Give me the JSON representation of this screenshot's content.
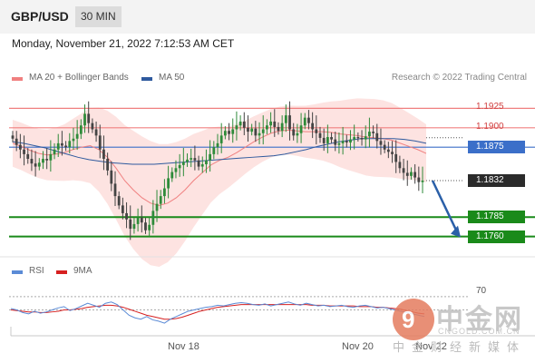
{
  "header": {
    "pair": "GBP/USD",
    "timeframe": "30 MIN"
  },
  "datetime": "Monday, November 21, 2022 7:12:53 AM CET",
  "credit": "Research © 2022 Trading Central",
  "legend": {
    "bb_label": "MA 20 + Bollinger Bands",
    "bb_color": "#f08080",
    "ma50_label": "MA 50",
    "ma50_color": "#2f5a9e"
  },
  "rsi_legend": {
    "rsi_label": "RSI",
    "rsi_color": "#5b8bd6",
    "ma_label": "9MA",
    "ma_color": "#d62020"
  },
  "colors": {
    "up": "#2e8b3a",
    "down": "#444444",
    "support": "#1a8a1a",
    "resistance": "#f08080",
    "pivot": "#3b6fc9",
    "current": "#2b2b2b",
    "arrow": "#2a5fa8"
  },
  "watermark": {
    "cn": "中金网",
    "url": "CNGOLD.COM.CN",
    "sub": "中金财经新媒体"
  },
  "chart_data": {
    "type": "candlestick",
    "x_labels": [
      "Nov 18",
      "Nov 20",
      "Nov 22"
    ],
    "price_range": [
      1.1735,
      1.195
    ],
    "levels": [
      {
        "name": "resistance",
        "label": "1.1925",
        "value": 1.1925
      },
      {
        "name": "resistance",
        "label": "1.1900",
        "value": 1.19
      },
      {
        "name": "pivot",
        "label": "1.1875",
        "value": 1.1875
      },
      {
        "name": "current",
        "label": "1.1832",
        "value": 1.1832
      },
      {
        "name": "support",
        "label": "1.1785",
        "value": 1.1785
      },
      {
        "name": "support",
        "label": "1.1760",
        "value": 1.176
      }
    ],
    "close": [
      1.1886,
      1.1878,
      1.1872,
      1.1866,
      1.186,
      1.1854,
      1.185,
      1.1855,
      1.186,
      1.1858,
      1.1866,
      1.1872,
      1.188,
      1.1877,
      1.1875,
      1.1883,
      1.1886,
      1.1892,
      1.1903,
      1.1918,
      1.1906,
      1.1898,
      1.189,
      1.1872,
      1.186,
      1.1845,
      1.1828,
      1.1812,
      1.18,
      1.179,
      1.1782,
      1.177,
      1.1776,
      1.1784,
      1.1778,
      1.1768,
      1.1775,
      1.1793,
      1.1802,
      1.1812,
      1.1822,
      1.1835,
      1.1843,
      1.1848,
      1.1852,
      1.1856,
      1.1859,
      1.1861,
      1.1858,
      1.185,
      1.1853,
      1.1858,
      1.1866,
      1.1875,
      1.188,
      1.189,
      1.1896,
      1.1892,
      1.1898,
      1.1903,
      1.1908,
      1.19,
      1.1895,
      1.1899,
      1.189,
      1.1893,
      1.1898,
      1.1903,
      1.1908,
      1.1901,
      1.1896,
      1.1906,
      1.1916,
      1.1898,
      1.189,
      1.1893,
      1.1903,
      1.1913,
      1.1906,
      1.1898,
      1.1893,
      1.1887,
      1.188,
      1.1888,
      1.1885,
      1.1878,
      1.188,
      1.1883,
      1.1881,
      1.1885,
      1.1888,
      1.1887,
      1.1885,
      1.1889,
      1.1895,
      1.1893,
      1.1883,
      1.1878,
      1.1872,
      1.1869,
      1.1866,
      1.1856,
      1.1848,
      1.1842,
      1.1838,
      1.1843,
      1.1836,
      1.183,
      1.1832
    ],
    "ma20": [
      1.188,
      1.1876,
      1.1871,
      1.1867,
      1.1865,
      1.1866,
      1.1868,
      1.1872,
      1.1875,
      1.1877,
      1.1872,
      1.1862,
      1.1848,
      1.1832,
      1.182,
      1.181,
      1.1803,
      1.18,
      1.1803,
      1.181,
      1.182,
      1.1832,
      1.1842,
      1.1852,
      1.1858,
      1.1862,
      1.1868,
      1.1875,
      1.1882,
      1.1888,
      1.1893,
      1.1896,
      1.1897,
      1.1896,
      1.1895,
      1.1895,
      1.1895,
      1.1894,
      1.1892,
      1.1891,
      1.189,
      1.1888,
      1.1887,
      1.1886,
      1.1884,
      1.188,
      1.1876,
      1.1872,
      1.1867
    ],
    "ma50": [
      1.1882,
      1.188,
      1.1877,
      1.1874,
      1.187,
      1.1866,
      1.1862,
      1.1859,
      1.1857,
      1.1855,
      1.1854,
      1.1853,
      1.1853,
      1.1853,
      1.1854,
      1.1855,
      1.1856,
      1.1857,
      1.1858,
      1.1859,
      1.186,
      1.1861,
      1.1862,
      1.1863,
      1.1864,
      1.1866,
      1.1869,
      1.1872,
      1.1876,
      1.1879,
      1.1882,
      1.1884,
      1.1886,
      1.1886,
      1.1886,
      1.1886,
      1.1885,
      1.1883,
      1.188
    ],
    "rsi": {
      "level": 70,
      "rsi": [
        52,
        50,
        46,
        44,
        48,
        45,
        47,
        50,
        53,
        55,
        49,
        52,
        56,
        60,
        57,
        54,
        60,
        62,
        58,
        50,
        42,
        38,
        36,
        40,
        35,
        33,
        30,
        36,
        40,
        44,
        48,
        50,
        52,
        54,
        55,
        57,
        56,
        58,
        60,
        61,
        60,
        58,
        57,
        59,
        56,
        58,
        60,
        62,
        59,
        57,
        60,
        58,
        56,
        57,
        55,
        56,
        57,
        55,
        54,
        56,
        57,
        55,
        53,
        54,
        52,
        50,
        48,
        46,
        44,
        42,
        40
      ],
      "ma9": [
        50,
        49,
        48,
        47,
        47,
        46,
        46,
        47,
        48,
        50,
        50,
        51,
        52,
        54,
        55,
        56,
        57,
        57,
        56,
        54,
        51,
        48,
        45,
        42,
        40,
        38,
        36,
        36,
        37,
        39,
        42,
        45,
        48,
        50,
        52,
        54,
        55,
        56,
        57,
        58,
        58,
        58,
        58,
        58,
        58,
        58,
        58,
        58,
        58,
        58,
        58,
        57,
        57,
        57,
        56,
        56,
        56,
        56,
        56,
        55,
        55,
        55,
        54,
        54,
        53,
        52,
        51,
        49,
        47,
        45,
        44
      ]
    }
  }
}
